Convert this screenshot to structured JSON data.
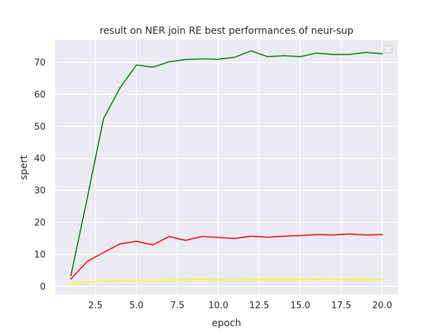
{
  "chart_data": {
    "type": "line",
    "title": "result on NER join RE best performances of neur-sup",
    "xlabel": "epoch",
    "ylabel": "spert",
    "xlim": [
      0.05,
      20.95
    ],
    "ylim": [
      -2.5,
      77.0
    ],
    "xticks": [
      2.5,
      5.0,
      7.5,
      10.0,
      12.5,
      15.0,
      17.5,
      20.0
    ],
    "xtick_labels": [
      "2.5",
      "5.0",
      "7.5",
      "10.0",
      "12.5",
      "15.0",
      "17.5",
      "20.0"
    ],
    "yticks": [
      0,
      10,
      20,
      30,
      40,
      50,
      60,
      70
    ],
    "ytick_labels": [
      "0",
      "10",
      "20",
      "30",
      "40",
      "50",
      "60",
      "70"
    ],
    "grid": true,
    "legend": "upper right (empty)",
    "background_color": "#eaeaf2",
    "grid_color": "#ffffff",
    "x": [
      1,
      2,
      3,
      4,
      5,
      6,
      7,
      8,
      9,
      10,
      11,
      12,
      13,
      14,
      15,
      16,
      17,
      18,
      19,
      20
    ],
    "series": [
      {
        "color": "#008000",
        "values": [
          3.3,
          27.5,
          52.5,
          62.0,
          69.2,
          68.5,
          70.2,
          70.9,
          71.1,
          71.0,
          71.6,
          73.6,
          71.8,
          72.1,
          71.8,
          72.9,
          72.5,
          72.5,
          73.1,
          72.7
        ]
      },
      {
        "color": "#ff0000",
        "values": [
          2.3,
          7.8,
          10.6,
          13.3,
          14.1,
          13.0,
          15.6,
          14.4,
          15.6,
          15.3,
          15.0,
          15.7,
          15.4,
          15.7,
          15.9,
          16.2,
          16.1,
          16.4,
          16.1,
          16.2
        ]
      },
      {
        "color": "#ffff00",
        "values": [
          0.7,
          1.4,
          1.7,
          1.9,
          1.9,
          1.9,
          2.0,
          2.0,
          2.2,
          2.0,
          2.0,
          2.1,
          2.1,
          2.1,
          2.1,
          2.2,
          2.2,
          2.1,
          2.1,
          2.1
        ]
      }
    ]
  }
}
